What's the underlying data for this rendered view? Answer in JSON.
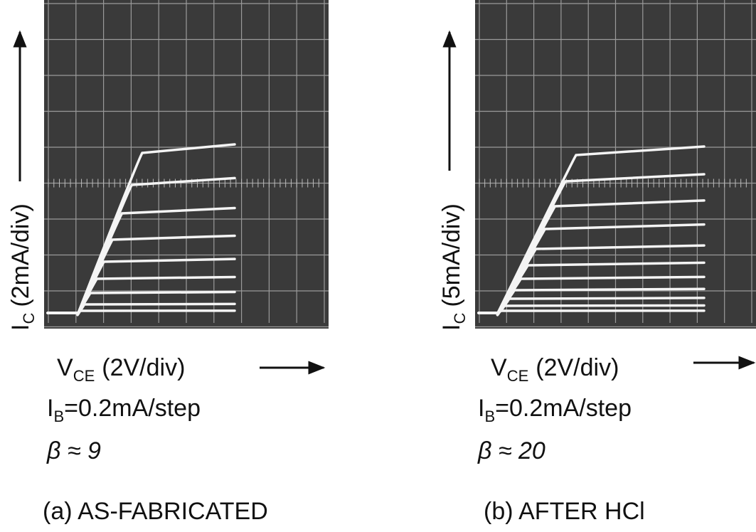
{
  "panels": [
    {
      "y_label": {
        "symbol": "I",
        "subscript": "C",
        "unit": "(2mA/div)"
      },
      "x_label": {
        "symbol": "V",
        "subscript": "CE",
        "unit": "(2V/div)"
      },
      "base_current": {
        "symbol": "I",
        "subscript": "B",
        "text": "=0.2mA/step"
      },
      "gain": "β ≈ 9",
      "caption": "(a) AS-FABRICATED"
    },
    {
      "y_label": {
        "symbol": "I",
        "subscript": "C",
        "unit": "(5mA/div)"
      },
      "x_label": {
        "symbol": "V",
        "subscript": "CE",
        "unit": "(2V/div)"
      },
      "base_current": {
        "symbol": "I",
        "subscript": "B",
        "text": "=0.2mA/step"
      },
      "gain": "β ≈ 20",
      "caption": "(b) AFTER HCl"
    }
  ]
}
